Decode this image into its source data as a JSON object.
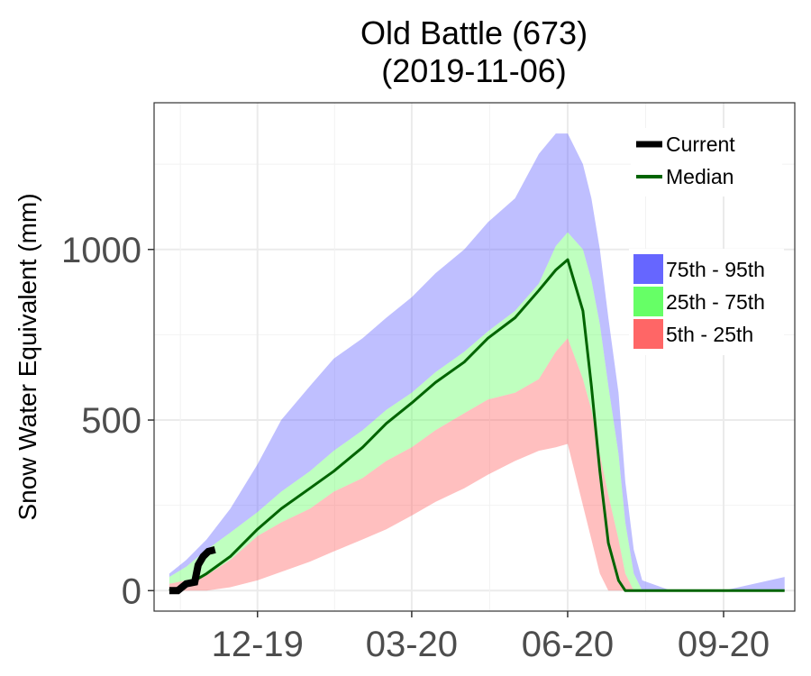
{
  "chart_data": {
    "type": "area",
    "title": "Old Battle (673)",
    "subtitle": "(2019-11-06)",
    "ylabel": "Snow Water Equivalent (mm)",
    "xlabel": "",
    "x_ticks": [
      "12-19",
      "03-20",
      "06-20",
      "09-20"
    ],
    "y_ticks": [
      0,
      500,
      1000
    ],
    "xlim": [
      "2019-10-01",
      "2020-10-13"
    ],
    "ylim": [
      -60,
      1430
    ],
    "grid": true,
    "legend_position": "top-right",
    "legend": {
      "lines": [
        {
          "label": "Current",
          "color": "#000000"
        },
        {
          "label": "Median",
          "color": "#006400"
        }
      ],
      "bands": [
        {
          "label": "75th - 95th",
          "color": "#6666ff"
        },
        {
          "label": "25th - 75th",
          "color": "#66ff66"
        },
        {
          "label": "5th - 25th",
          "color": "#ff6666"
        }
      ]
    },
    "dates": [
      "2019-10-10",
      "2019-10-20",
      "2019-11-01",
      "2019-11-15",
      "2019-12-01",
      "2019-12-15",
      "2020-01-01",
      "2020-01-15",
      "2020-02-01",
      "2020-02-15",
      "2020-03-01",
      "2020-03-15",
      "2020-04-01",
      "2020-04-15",
      "2020-05-01",
      "2020-05-15",
      "2020-05-25",
      "2020-06-01",
      "2020-06-10",
      "2020-06-15",
      "2020-06-20",
      "2020-06-25",
      "2020-07-01",
      "2020-07-05",
      "2020-07-10",
      "2020-07-15",
      "2020-08-01",
      "2020-09-01",
      "2020-10-07"
    ],
    "series": [
      {
        "name": "5th - 25th",
        "lower": [
          0,
          0,
          0,
          10,
          30,
          55,
          85,
          115,
          150,
          180,
          220,
          260,
          300,
          340,
          380,
          410,
          420,
          430,
          250,
          150,
          50,
          0,
          0,
          0,
          0,
          0,
          0,
          0,
          0
        ],
        "upper": [
          20,
          30,
          45,
          90,
          160,
          200,
          240,
          290,
          330,
          380,
          420,
          470,
          520,
          560,
          580,
          620,
          700,
          740,
          620,
          530,
          400,
          280,
          150,
          50,
          0,
          0,
          0,
          0,
          0
        ]
      },
      {
        "name": "25th - 75th",
        "lower": [
          20,
          30,
          45,
          90,
          160,
          200,
          240,
          290,
          330,
          380,
          420,
          470,
          520,
          560,
          580,
          620,
          700,
          740,
          620,
          530,
          400,
          280,
          150,
          50,
          0,
          0,
          0,
          0,
          0
        ],
        "upper": [
          40,
          70,
          120,
          170,
          230,
          290,
          350,
          410,
          470,
          530,
          580,
          640,
          700,
          760,
          820,
          900,
          1010,
          1050,
          1000,
          910,
          780,
          600,
          400,
          200,
          50,
          0,
          0,
          0,
          0
        ]
      },
      {
        "name": "75th - 95th",
        "lower": [
          40,
          70,
          120,
          170,
          230,
          290,
          350,
          410,
          470,
          530,
          580,
          640,
          700,
          760,
          820,
          900,
          1010,
          1050,
          1000,
          910,
          780,
          600,
          400,
          200,
          50,
          0,
          0,
          0,
          0
        ],
        "upper": [
          50,
          90,
          150,
          240,
          370,
          500,
          600,
          680,
          740,
          800,
          860,
          930,
          1000,
          1080,
          1150,
          1280,
          1340,
          1340,
          1250,
          1150,
          1000,
          800,
          580,
          320,
          120,
          30,
          0,
          0,
          40
        ]
      },
      {
        "name": "Median",
        "values": [
          0,
          15,
          50,
          100,
          180,
          240,
          300,
          350,
          420,
          490,
          550,
          610,
          670,
          740,
          800,
          880,
          940,
          970,
          820,
          600,
          350,
          140,
          30,
          0,
          0,
          0,
          0,
          0,
          0
        ]
      },
      {
        "name": "Current",
        "x": [
          "2019-10-10",
          "2019-10-15",
          "2019-10-20",
          "2019-10-25",
          "2019-10-27",
          "2019-10-30",
          "2019-11-02",
          "2019-11-06"
        ],
        "values": [
          0,
          0,
          20,
          25,
          75,
          100,
          115,
          120
        ]
      }
    ]
  }
}
